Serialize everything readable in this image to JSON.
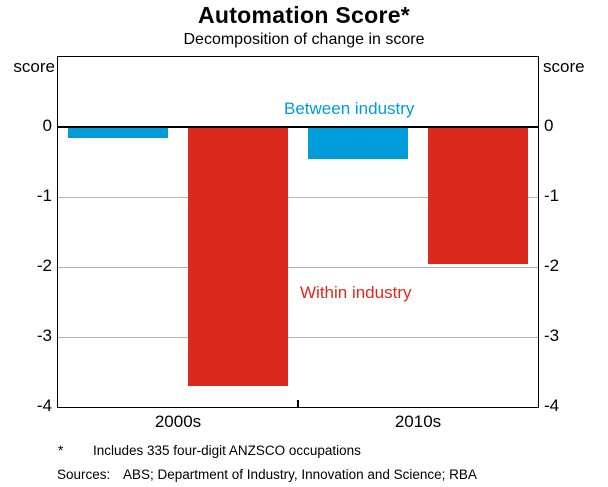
{
  "chart_data": {
    "type": "bar",
    "title": "Automation Score*",
    "subtitle": "Decomposition of change in score",
    "unit_label_left": "score",
    "unit_label_right": "score",
    "categories": [
      "2000s",
      "2010s"
    ],
    "series": [
      {
        "name": "Between industry",
        "color": "#009CD9",
        "values": [
          -0.15,
          -0.45
        ]
      },
      {
        "name": "Within industry",
        "color": "#DA2A1D",
        "values": [
          -3.7,
          -1.95
        ]
      }
    ],
    "ylim": [
      -4,
      1
    ],
    "yticks_labeled": [
      0,
      -1,
      -2,
      -3,
      -4
    ],
    "gridlines": [
      -1,
      -2,
      -3
    ],
    "grid": "horizontal",
    "legend_position": "inline-annotations",
    "grid_color": "#b3b3b3"
  },
  "footnote": {
    "marker": "*",
    "text": "Includes 335 four-digit ANZSCO occupations"
  },
  "sources": {
    "label": "Sources:",
    "text": "ABS; Department of Industry, Innovation and Science; RBA"
  }
}
